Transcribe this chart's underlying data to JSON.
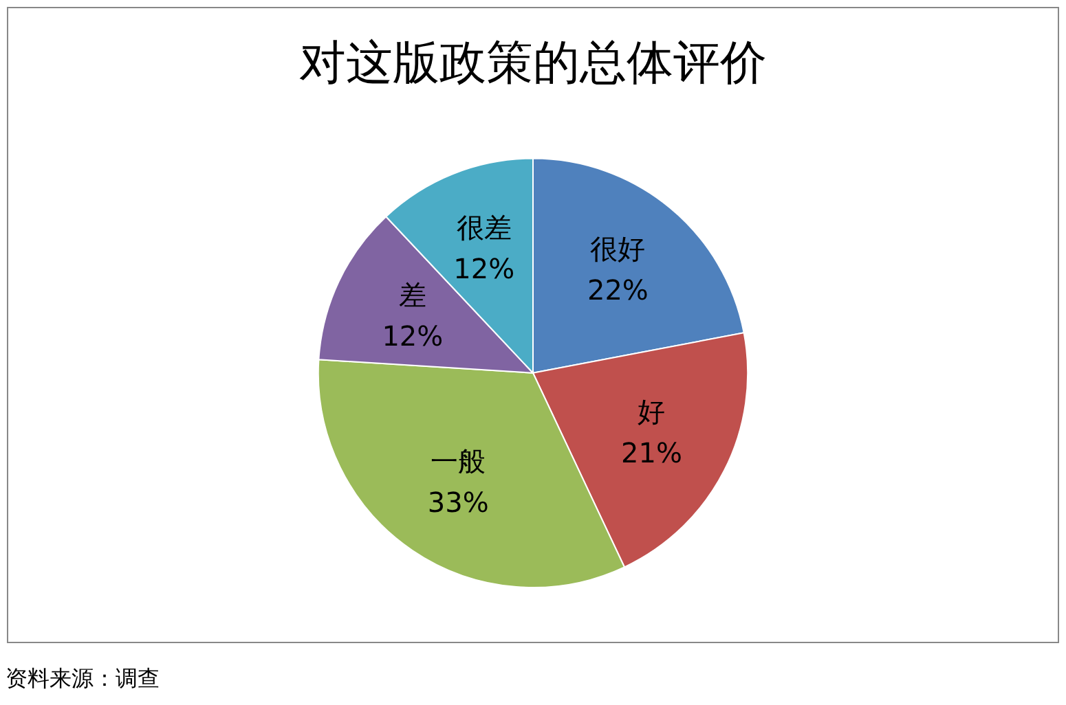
{
  "chart_data": {
    "type": "pie",
    "title": "对这版政策的总体评价",
    "categories": [
      "很好",
      "好",
      "一般",
      "差",
      "很差"
    ],
    "values": [
      22,
      21,
      33,
      12,
      12
    ],
    "value_labels": [
      "22%",
      "21%",
      "33%",
      "12%",
      "12%"
    ],
    "colors": [
      "#4f81bd",
      "#c0504d",
      "#9bbb59",
      "#8064a2",
      "#4bacc6"
    ],
    "legend": false,
    "annotations": [
      "资料来源：调查"
    ]
  }
}
